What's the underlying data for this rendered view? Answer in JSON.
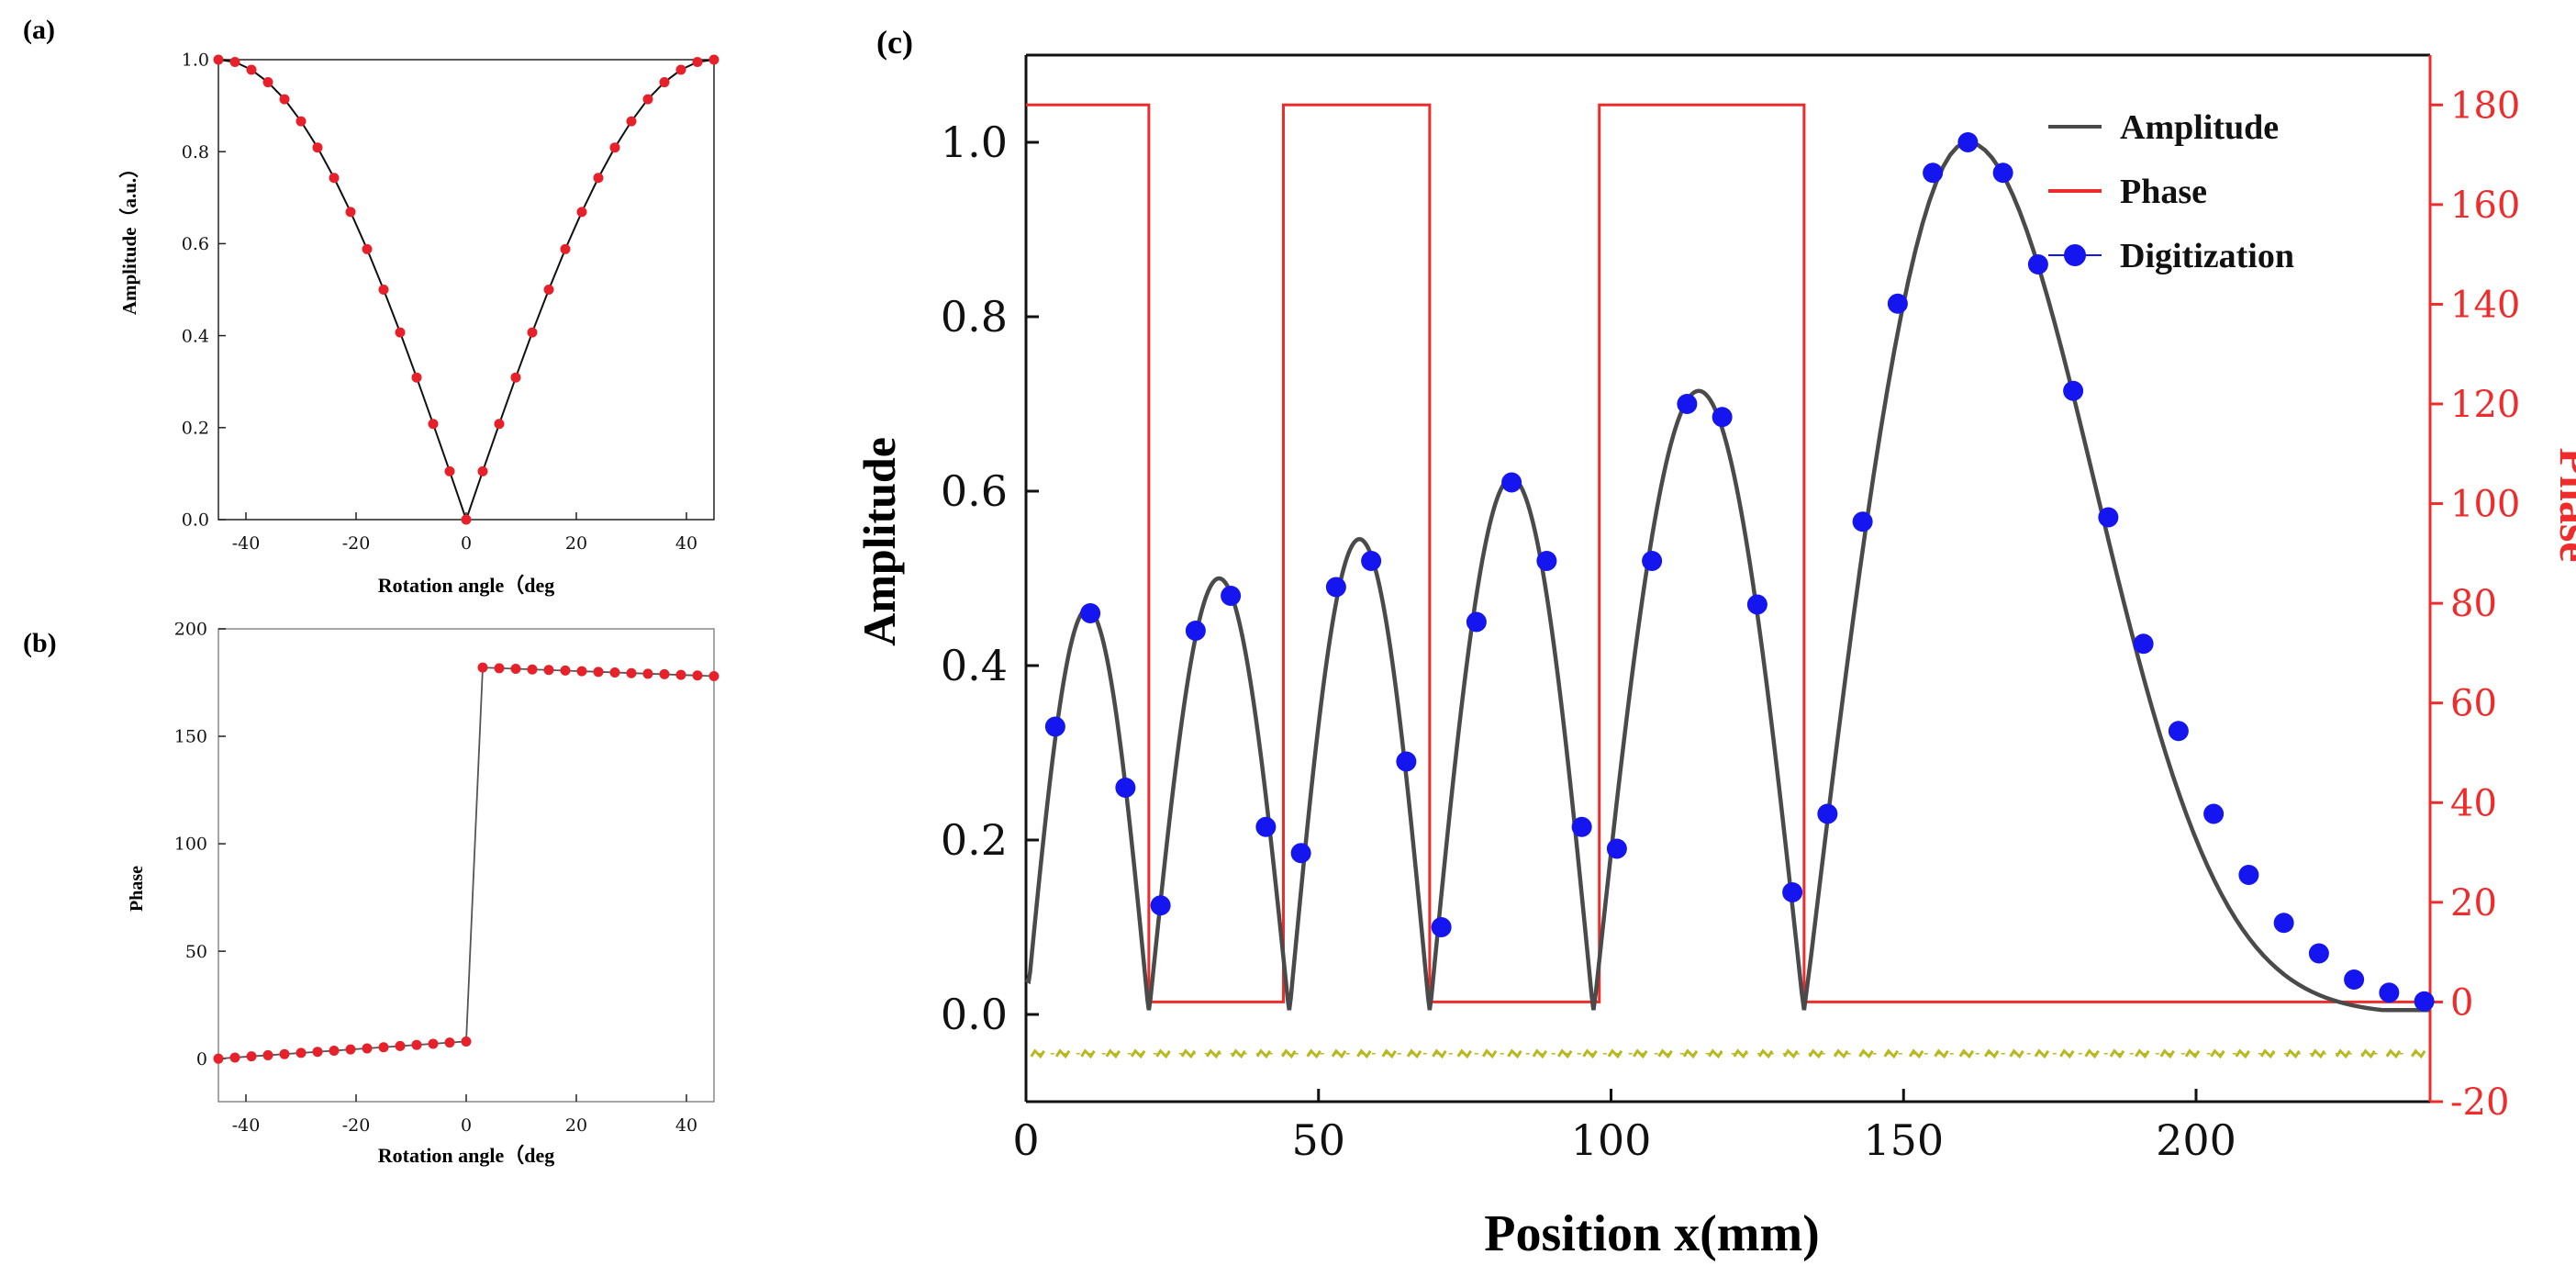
{
  "chart_data": [
    {
      "id": "a",
      "panel_label": "(a)",
      "type": "line",
      "xlabel": "Rotation angle（deg",
      "ylabel": "Amplitude（a.u.）",
      "xlim": [
        -45,
        45
      ],
      "ylim": [
        0,
        1
      ],
      "xticks": [
        -40,
        -20,
        0,
        20,
        40
      ],
      "yticks": [
        0.0,
        0.2,
        0.4,
        0.6,
        0.8,
        1.0
      ],
      "xtick_labels": [
        "-40",
        "-20",
        "0",
        "20",
        "40"
      ],
      "ytick_labels": [
        "0.0",
        "0.2",
        "0.4",
        "0.6",
        "0.8",
        "1.0"
      ],
      "series": [
        {
          "name": "curve",
          "style": "line",
          "color": "#111111",
          "x": [
            -45,
            -42,
            -39,
            -36,
            -33,
            -30,
            -27,
            -24,
            -21,
            -18,
            -15,
            -12,
            -9,
            -6,
            -3,
            0,
            3,
            6,
            9,
            12,
            15,
            18,
            21,
            24,
            27,
            30,
            33,
            36,
            39,
            42,
            45
          ],
          "y": [
            1.0,
            0.995,
            0.978,
            0.951,
            0.914,
            0.866,
            0.809,
            0.743,
            0.669,
            0.588,
            0.5,
            0.407,
            0.309,
            0.208,
            0.105,
            0.0,
            0.105,
            0.208,
            0.309,
            0.407,
            0.5,
            0.588,
            0.669,
            0.743,
            0.809,
            0.866,
            0.914,
            0.951,
            0.978,
            0.995,
            1.0
          ]
        },
        {
          "name": "points",
          "style": "marker",
          "color": "#e8202a",
          "x": [
            -45,
            -42,
            -39,
            -36,
            -33,
            -30,
            -27,
            -24,
            -21,
            -18,
            -15,
            -12,
            -9,
            -6,
            -3,
            0,
            3,
            6,
            9,
            12,
            15,
            18,
            21,
            24,
            27,
            30,
            33,
            36,
            39,
            42,
            45
          ],
          "y": [
            1.0,
            0.995,
            0.978,
            0.951,
            0.914,
            0.866,
            0.809,
            0.743,
            0.669,
            0.588,
            0.5,
            0.407,
            0.309,
            0.208,
            0.105,
            0.0,
            0.105,
            0.208,
            0.309,
            0.407,
            0.5,
            0.588,
            0.669,
            0.743,
            0.809,
            0.866,
            0.914,
            0.951,
            0.978,
            0.995,
            1.0
          ]
        }
      ]
    },
    {
      "id": "b",
      "panel_label": "(b)",
      "type": "line",
      "xlabel": "Rotation angle（deg",
      "ylabel": "Phase",
      "xlim": [
        -45,
        45
      ],
      "ylim": [
        -20,
        200
      ],
      "xticks": [
        -40,
        -20,
        0,
        20,
        40
      ],
      "yticks": [
        0,
        50,
        100,
        150,
        200
      ],
      "xtick_labels": [
        "-40",
        "-20",
        "0",
        "20",
        "40"
      ],
      "ytick_labels": [
        "0",
        "50",
        "100",
        "150",
        "200"
      ],
      "series": [
        {
          "name": "curve",
          "style": "line",
          "color": "#555555",
          "x": [
            -45,
            0,
            3,
            45
          ],
          "y": [
            0,
            8,
            182,
            178
          ]
        },
        {
          "name": "left-points",
          "style": "marker",
          "color": "#e8202a",
          "x": [
            -45,
            -42,
            -39,
            -36,
            -33,
            -30,
            -27,
            -24,
            -21,
            -18,
            -15,
            -12,
            -9,
            -6,
            -3,
            0
          ],
          "y": [
            0.0,
            0.5,
            1.1,
            1.6,
            2.1,
            2.7,
            3.2,
            3.7,
            4.3,
            4.8,
            5.3,
            5.9,
            6.4,
            6.9,
            7.5,
            8.0
          ]
        },
        {
          "name": "right-points",
          "style": "marker",
          "color": "#e8202a",
          "x": [
            3,
            6,
            9,
            12,
            15,
            18,
            21,
            24,
            27,
            30,
            33,
            36,
            39,
            42,
            45
          ],
          "y": [
            182.0,
            181.7,
            181.4,
            181.1,
            180.9,
            180.6,
            180.3,
            180.0,
            179.7,
            179.4,
            179.1,
            178.9,
            178.6,
            178.3,
            178.0
          ]
        }
      ]
    },
    {
      "id": "c",
      "panel_label": "(c)",
      "type": "line",
      "xlabel": "Position  x(mm)",
      "ylabel": "Amplitude",
      "y2label": "Phase",
      "xlim": [
        0,
        240
      ],
      "ylim": [
        -0.1,
        1.1
      ],
      "y2lim": [
        -20,
        190
      ],
      "xticks": [
        0,
        50,
        100,
        150,
        200
      ],
      "yticks": [
        0.0,
        0.2,
        0.4,
        0.6,
        0.8,
        1.0
      ],
      "y2ticks": [
        -20,
        0,
        20,
        40,
        60,
        80,
        100,
        120,
        140,
        160,
        180
      ],
      "xtick_labels": [
        "0",
        "50",
        "100",
        "150",
        "200"
      ],
      "ytick_labels": [
        "0.0",
        "0.2",
        "0.4",
        "0.6",
        "0.8",
        "1.0"
      ],
      "y2tick_labels": [
        "-20",
        "0",
        "20",
        "40",
        "60",
        "80",
        "100",
        "120",
        "140",
        "160",
        "180"
      ],
      "legend": {
        "position": "top-right",
        "entries": [
          {
            "label": "Amplitude",
            "style": "line",
            "color": "#4a4a4a"
          },
          {
            "label": "Phase",
            "style": "line",
            "color": "#ee2c2c"
          },
          {
            "label": "Digitization",
            "style": "marker-line",
            "color": "#1515f0"
          }
        ]
      },
      "amplitude_lobes": [
        {
          "start": 0,
          "end": 21,
          "peak": 0.465,
          "base": 0.04
        },
        {
          "start": 21,
          "end": 45,
          "peak": 0.5
        },
        {
          "start": 45,
          "end": 69,
          "peak": 0.545
        },
        {
          "start": 69,
          "end": 97,
          "peak": 0.615
        },
        {
          "start": 97,
          "end": 133,
          "peak": 0.715
        },
        {
          "start": 133,
          "end": 240,
          "peak": 1.0,
          "peak_x": 161,
          "decay": 30
        }
      ],
      "phase": {
        "x": [
          0,
          21,
          21,
          44,
          44,
          69,
          69,
          98,
          98,
          133,
          133,
          240
        ],
        "y": [
          180,
          180,
          0,
          0,
          180,
          180,
          0,
          0,
          180,
          180,
          0,
          0
        ]
      },
      "digitization": {
        "x": [
          5,
          11,
          17,
          23,
          29,
          35,
          41,
          47,
          53,
          59,
          65,
          71,
          77,
          83,
          89,
          95,
          101,
          107,
          113,
          119,
          125,
          131,
          137,
          143,
          149,
          155,
          161,
          167,
          173,
          179,
          185,
          191,
          197,
          203,
          209,
          215,
          221,
          227,
          233,
          239
        ],
        "y": [
          0.33,
          0.46,
          0.26,
          0.125,
          0.44,
          0.48,
          0.215,
          0.185,
          0.49,
          0.52,
          0.29,
          0.1,
          0.45,
          0.61,
          0.52,
          0.215,
          0.19,
          0.52,
          0.7,
          0.685,
          0.47,
          0.14,
          0.23,
          0.565,
          0.815,
          0.965,
          1.0,
          0.965,
          0.86,
          0.715,
          0.57,
          0.425,
          0.325,
          0.23,
          0.16,
          0.105,
          0.07,
          0.04,
          0.025,
          0.015
        ]
      },
      "baseline_markers": {
        "y": -0.045,
        "count": 56,
        "color": "#b8b820"
      }
    }
  ]
}
